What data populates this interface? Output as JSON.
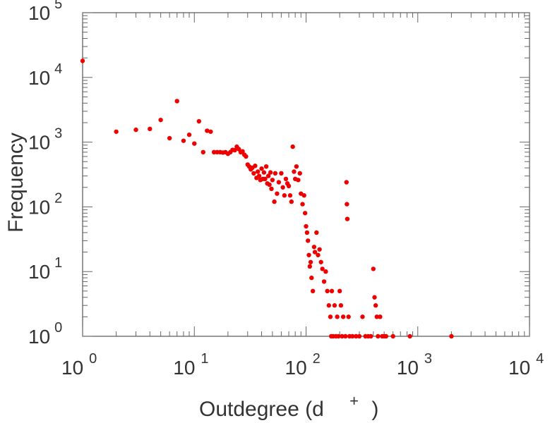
{
  "chart_data": {
    "type": "scatter",
    "xscale": "log",
    "yscale": "log",
    "xlim": [
      1,
      10000
    ],
    "ylim": [
      1,
      100000
    ],
    "xlabel_main": "Outdegree (d",
    "xlabel_sup": "+",
    "xlabel_close": ")",
    "ylabel": "Frequency",
    "xticks": [
      {
        "base": "10",
        "exp": "0"
      },
      {
        "base": "10",
        "exp": "1"
      },
      {
        "base": "10",
        "exp": "2"
      },
      {
        "base": "10",
        "exp": "3"
      },
      {
        "base": "10",
        "exp": "4"
      }
    ],
    "yticks": [
      {
        "base": "10",
        "exp": "0"
      },
      {
        "base": "10",
        "exp": "1"
      },
      {
        "base": "10",
        "exp": "2"
      },
      {
        "base": "10",
        "exp": "3"
      },
      {
        "base": "10",
        "exp": "4"
      },
      {
        "base": "10",
        "exp": "5"
      }
    ],
    "grid": false,
    "marker_color": "#ee0000",
    "points": [
      [
        1,
        18000
      ],
      [
        2,
        1450
      ],
      [
        3,
        1550
      ],
      [
        4,
        1600
      ],
      [
        5,
        2200
      ],
      [
        6,
        1150
      ],
      [
        7,
        4300
      ],
      [
        8,
        1050
      ],
      [
        9,
        1300
      ],
      [
        10,
        950
      ],
      [
        11,
        2100
      ],
      [
        12,
        700
      ],
      [
        13,
        1500
      ],
      [
        14,
        1450
      ],
      [
        15,
        700
      ],
      [
        16,
        700
      ],
      [
        17,
        700
      ],
      [
        18,
        690
      ],
      [
        19,
        700
      ],
      [
        20,
        660
      ],
      [
        21,
        700
      ],
      [
        22,
        760
      ],
      [
        23,
        750
      ],
      [
        24,
        850
      ],
      [
        25,
        780
      ],
      [
        26,
        700
      ],
      [
        27,
        720
      ],
      [
        28,
        640
      ],
      [
        29,
        600
      ],
      [
        30,
        450
      ],
      [
        31,
        420
      ],
      [
        32,
        380
      ],
      [
        33,
        400
      ],
      [
        34,
        330
      ],
      [
        35,
        430
      ],
      [
        36,
        280
      ],
      [
        37,
        350
      ],
      [
        38,
        300
      ],
      [
        39,
        260
      ],
      [
        40,
        390
      ],
      [
        41,
        270
      ],
      [
        42,
        340
      ],
      [
        43,
        270
      ],
      [
        44,
        420
      ],
      [
        45,
        230
      ],
      [
        46,
        300
      ],
      [
        47,
        220
      ],
      [
        48,
        340
      ],
      [
        49,
        190
      ],
      [
        50,
        260
      ],
      [
        52,
        120
      ],
      [
        53,
        330
      ],
      [
        55,
        160
      ],
      [
        57,
        240
      ],
      [
        60,
        330
      ],
      [
        62,
        200
      ],
      [
        64,
        150
      ],
      [
        66,
        270
      ],
      [
        68,
        230
      ],
      [
        70,
        210
      ],
      [
        72,
        150
      ],
      [
        74,
        120
      ],
      [
        76,
        850
      ],
      [
        78,
        350
      ],
      [
        80,
        270
      ],
      [
        82,
        420
      ],
      [
        85,
        260
      ],
      [
        88,
        330
      ],
      [
        90,
        160
      ],
      [
        93,
        110
      ],
      [
        96,
        150
      ],
      [
        98,
        80
      ],
      [
        100,
        50
      ],
      [
        102,
        40
      ],
      [
        104,
        30
      ],
      [
        106,
        18
      ],
      [
        108,
        12
      ],
      [
        110,
        14
      ],
      [
        112,
        8
      ],
      [
        115,
        5
      ],
      [
        118,
        24
      ],
      [
        120,
        20
      ],
      [
        124,
        40
      ],
      [
        128,
        18
      ],
      [
        132,
        22
      ],
      [
        136,
        14
      ],
      [
        140,
        11
      ],
      [
        145,
        7
      ],
      [
        150,
        10
      ],
      [
        155,
        5
      ],
      [
        160,
        3
      ],
      [
        165,
        2
      ],
      [
        168,
        1
      ],
      [
        170,
        5
      ],
      [
        175,
        1
      ],
      [
        180,
        3
      ],
      [
        185,
        1
      ],
      [
        190,
        2
      ],
      [
        195,
        1
      ],
      [
        200,
        5
      ],
      [
        205,
        3
      ],
      [
        210,
        1
      ],
      [
        215,
        2
      ],
      [
        225,
        1
      ],
      [
        230,
        240
      ],
      [
        232,
        110
      ],
      [
        234,
        65
      ],
      [
        240,
        2
      ],
      [
        245,
        1
      ],
      [
        260,
        1
      ],
      [
        280,
        1
      ],
      [
        300,
        1
      ],
      [
        320,
        2
      ],
      [
        340,
        1
      ],
      [
        360,
        1
      ],
      [
        380,
        1
      ],
      [
        400,
        11
      ],
      [
        410,
        4
      ],
      [
        420,
        3
      ],
      [
        430,
        2
      ],
      [
        440,
        1
      ],
      [
        460,
        2
      ],
      [
        480,
        1
      ],
      [
        500,
        1
      ],
      [
        520,
        1
      ],
      [
        600,
        1
      ],
      [
        850,
        1
      ],
      [
        2000,
        1
      ]
    ]
  }
}
